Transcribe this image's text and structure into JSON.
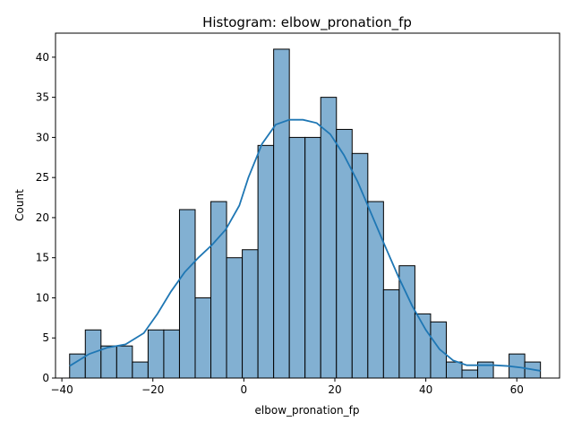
{
  "chart_data": {
    "type": "bar",
    "title": "Histogram: elbow_pronation_fp",
    "xlabel": "elbow_pronation_fp",
    "ylabel": "Count",
    "xlim": [
      -41.4,
      69.4
    ],
    "ylim": [
      0,
      43
    ],
    "xticks": [
      -40,
      -20,
      0,
      20,
      40,
      60
    ],
    "yticks": [
      0,
      5,
      10,
      15,
      20,
      25,
      30,
      35,
      40
    ],
    "bin_edges": [
      -38.3,
      -34.85,
      -31.4,
      -27.95,
      -24.5,
      -21.05,
      -17.6,
      -14.15,
      -10.7,
      -7.25,
      -3.8,
      -0.35,
      3.1,
      6.55,
      10.0,
      13.45,
      16.9,
      20.35,
      23.8,
      27.25,
      30.7,
      34.15,
      37.6,
      41.05,
      44.5,
      47.95,
      51.4,
      54.85,
      58.3,
      61.75,
      65.2
    ],
    "values": [
      3,
      6,
      4,
      4,
      2,
      6,
      6,
      21,
      10,
      22,
      15,
      16,
      29,
      41,
      30,
      30,
      35,
      31,
      28,
      22,
      11,
      14,
      8,
      7,
      2,
      1,
      2,
      0,
      3,
      2
    ],
    "kde": {
      "x": [
        -38.3,
        -34,
        -30,
        -26,
        -22,
        -19,
        -16,
        -13,
        -10,
        -7,
        -4,
        -1,
        1,
        4,
        7,
        10,
        13,
        16,
        19,
        22,
        25,
        28,
        31,
        34,
        37,
        40,
        43,
        46,
        49,
        52,
        55,
        58,
        61,
        65.2
      ],
      "y": [
        1.5,
        3.0,
        3.8,
        4.2,
        5.6,
        8.0,
        10.8,
        13.2,
        15.0,
        16.6,
        18.5,
        21.5,
        25.0,
        29.2,
        31.6,
        32.2,
        32.2,
        31.8,
        30.4,
        27.8,
        24.5,
        20.5,
        16.5,
        12.6,
        9.0,
        6.0,
        3.6,
        2.2,
        1.6,
        1.6,
        1.6,
        1.5,
        1.3,
        0.9
      ]
    },
    "grid": false,
    "colors": {
      "bar_fill": "#82b0d2",
      "bar_edge": "#000000",
      "kde_line": "#1f77b4"
    }
  }
}
